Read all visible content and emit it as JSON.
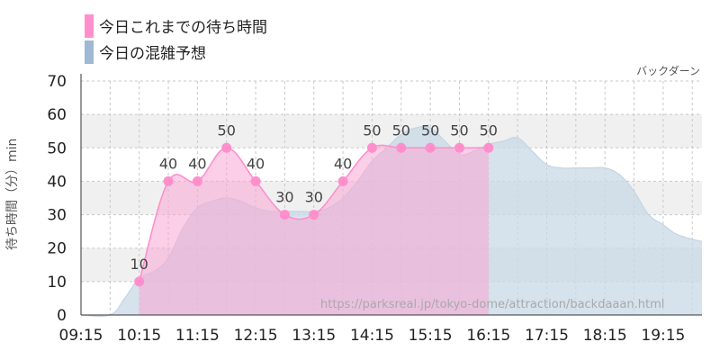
{
  "legend": [
    {
      "label": "今日これまでの待ち時間",
      "color": "#ff8fcc"
    },
    {
      "label": "今日の混雑予想",
      "color": "#9fb8d4"
    }
  ],
  "subtitle": "バックダーン",
  "watermark": "https://parksreal.jp/tokyo-dome/attraction/backdaaan.html",
  "colors": {
    "actual_fill": "#f9a6d3",
    "actual_stroke": "#ff8ccc",
    "actual_marker": "#ff8fcc",
    "forecast_fill": "#c8d8e6",
    "forecast_stroke": "#c6d5e3",
    "band": "#f0f0f0",
    "grid": "#c8c8c8",
    "axis": "#333333"
  },
  "chart_data": {
    "type": "area",
    "ylabel": "待ち時間（分）min",
    "ylim": [
      0,
      70
    ],
    "yticks": [
      0,
      10,
      20,
      30,
      40,
      50,
      60,
      70
    ],
    "xlim": [
      "09:15",
      "19:55"
    ],
    "xticks": [
      "09:15",
      "10:15",
      "11:15",
      "12:15",
      "13:15",
      "14:15",
      "15:15",
      "16:15",
      "17:15",
      "18:15",
      "19:15"
    ],
    "grid": true,
    "legend_position": "top-left",
    "series": [
      {
        "name": "今日これまでの待ち時間",
        "x": [
          "10:15",
          "10:45",
          "11:15",
          "11:45",
          "12:15",
          "12:45",
          "13:15",
          "13:45",
          "14:15",
          "14:45",
          "15:15",
          "15:45",
          "16:15"
        ],
        "values": [
          10,
          40,
          40,
          50,
          40,
          30,
          30,
          40,
          50,
          50,
          50,
          50,
          50
        ]
      },
      {
        "name": "今日の混雑予想",
        "x": [
          "09:15",
          "09:45",
          "10:00",
          "10:15",
          "10:30",
          "10:45",
          "11:00",
          "11:15",
          "11:30",
          "11:45",
          "12:00",
          "12:15",
          "12:30",
          "12:45",
          "13:00",
          "13:15",
          "13:30",
          "13:45",
          "14:00",
          "14:15",
          "14:30",
          "14:45",
          "15:00",
          "15:15",
          "15:30",
          "15:45",
          "16:00",
          "16:15",
          "16:30",
          "16:45",
          "17:00",
          "17:15",
          "17:30",
          "17:45",
          "18:00",
          "18:15",
          "18:30",
          "18:45",
          "19:00",
          "19:15",
          "19:30",
          "19:55"
        ],
        "values": [
          0,
          0,
          5,
          11,
          13,
          17,
          26,
          32,
          34,
          35,
          34,
          32,
          31,
          31,
          31,
          31,
          32,
          35,
          40,
          46,
          50,
          54,
          56,
          56,
          52,
          48,
          49,
          51,
          52,
          53,
          49,
          45,
          44,
          44,
          44,
          44,
          42,
          37,
          30,
          27,
          24,
          22
        ]
      }
    ]
  }
}
